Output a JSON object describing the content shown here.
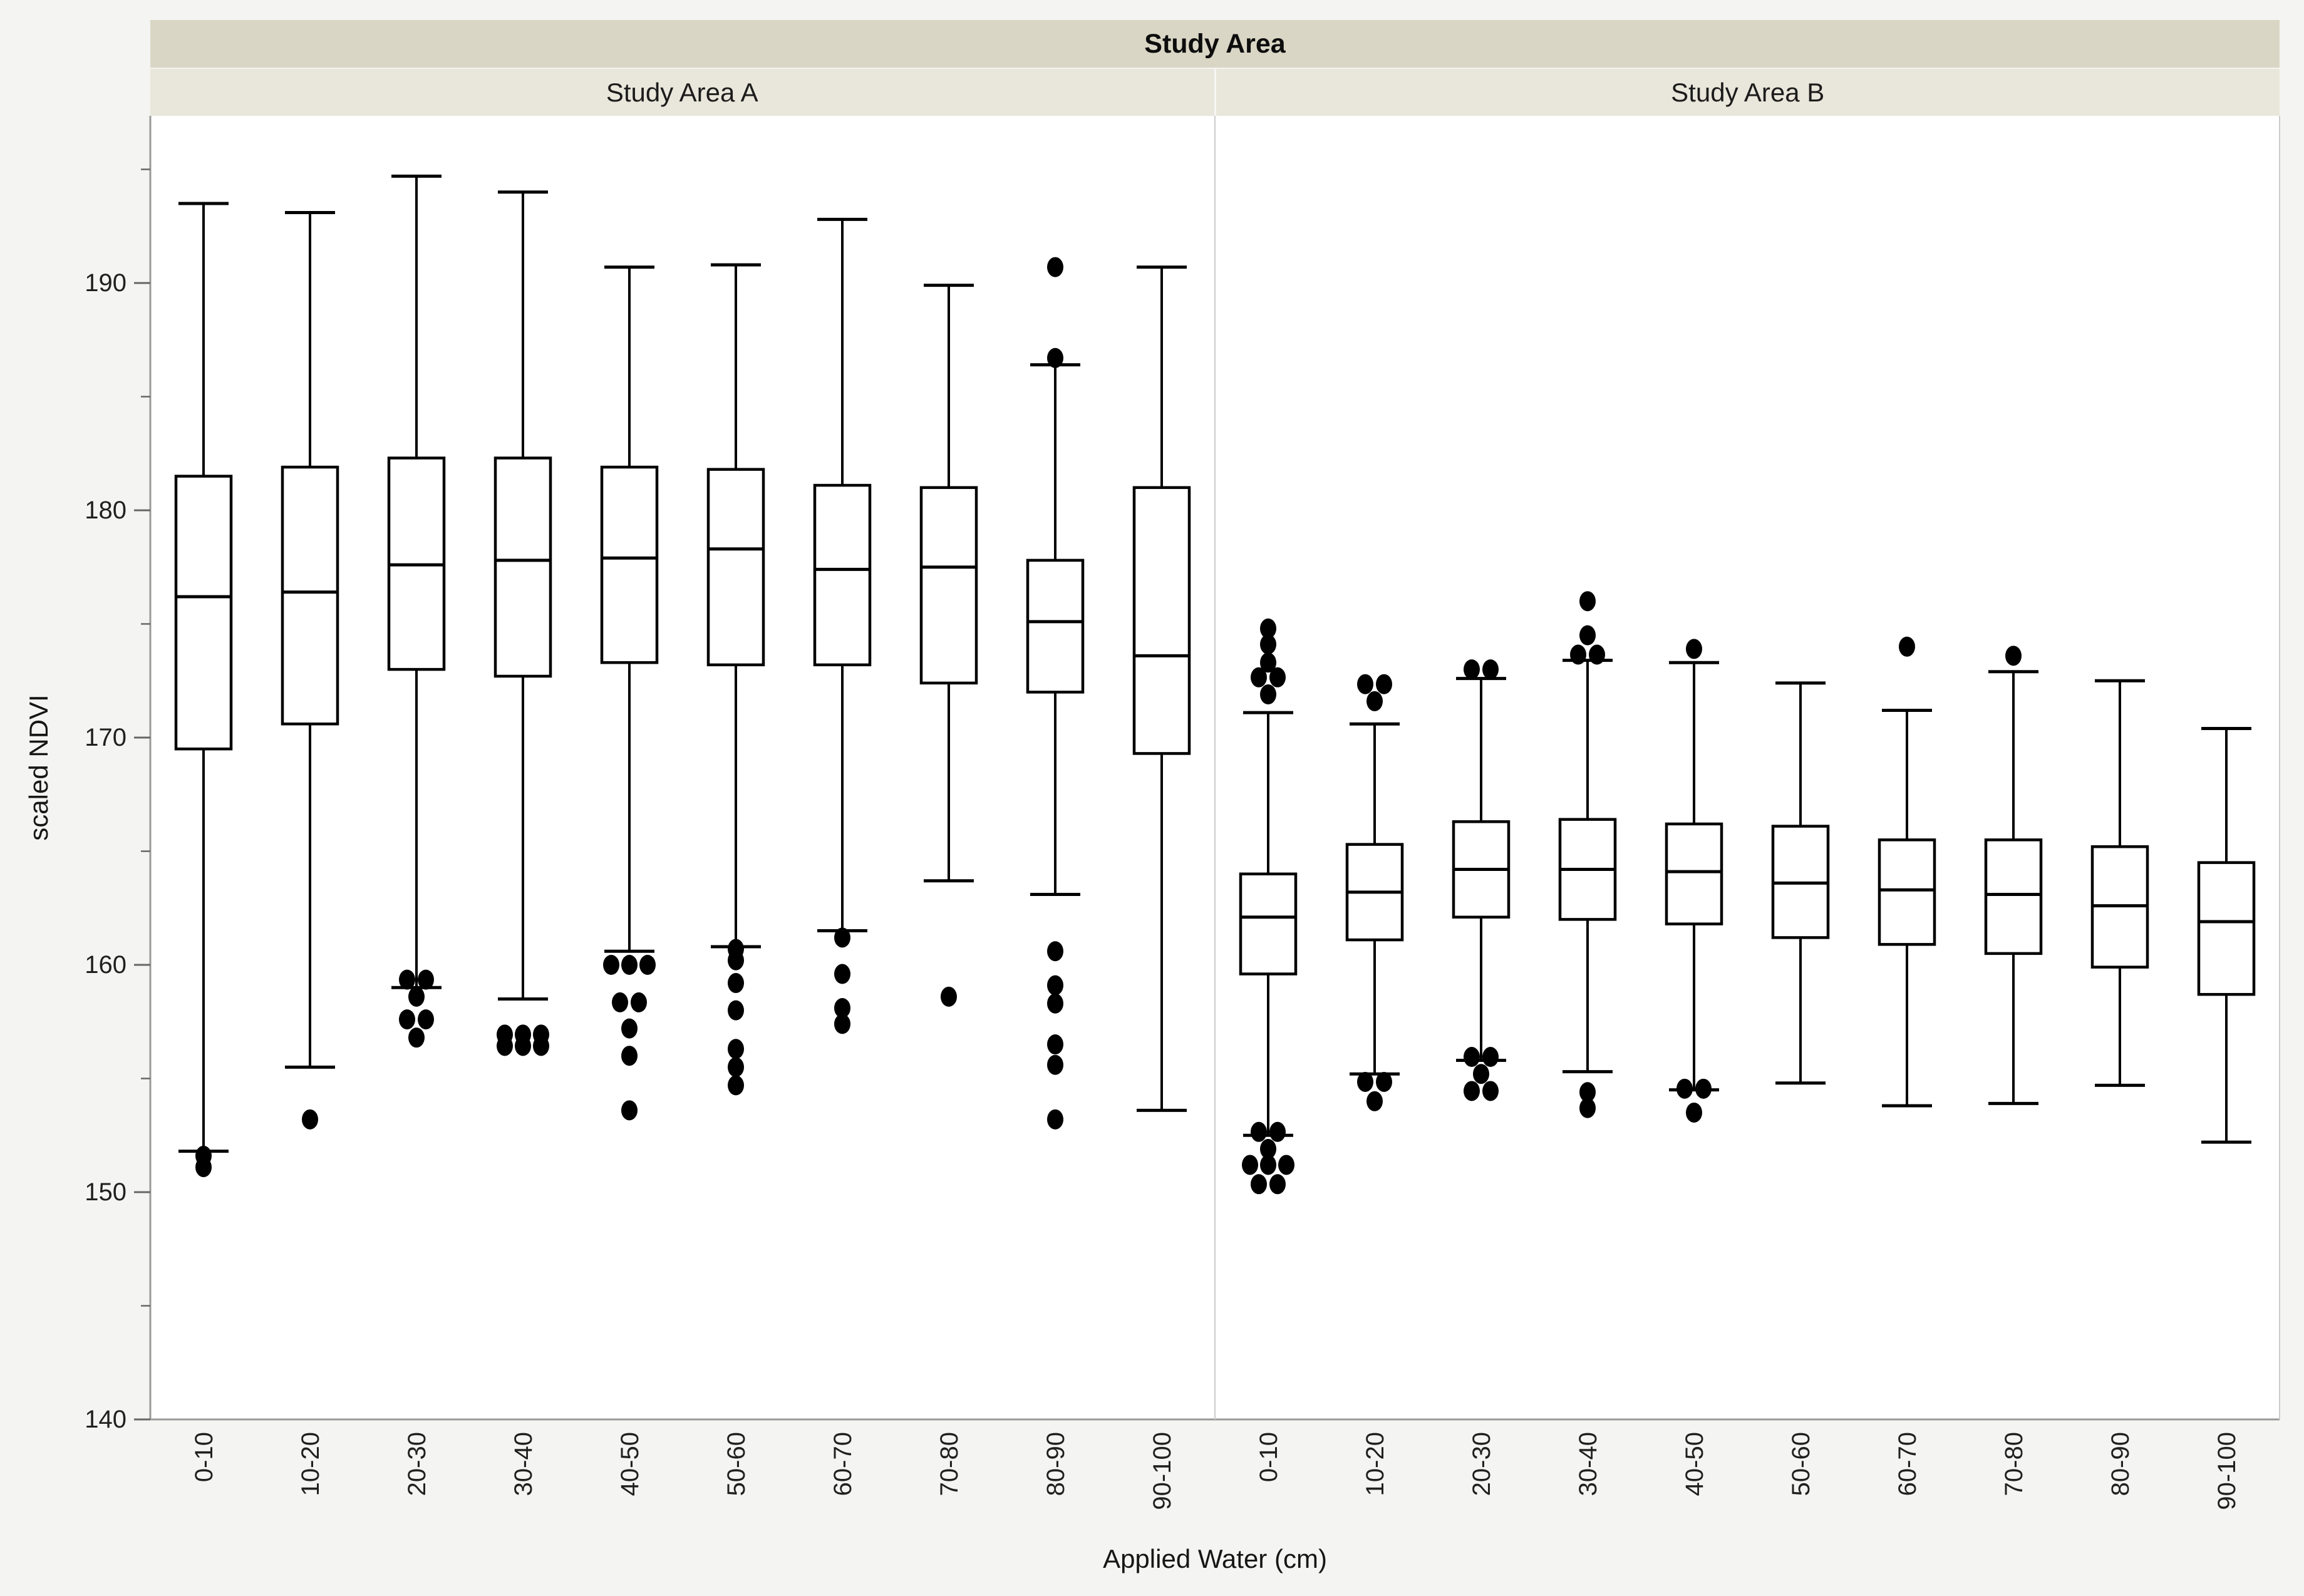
{
  "title": "Study Area",
  "panels_header": [
    "Study Area A",
    "Study Area B"
  ],
  "x_axis": {
    "label": "Applied Water (cm)"
  },
  "y_axis": {
    "label": "scaled NDVI",
    "major_ticks": [
      190,
      180,
      170,
      160,
      150,
      140
    ],
    "minor_ticks": [
      195,
      185,
      175,
      165,
      155,
      145
    ],
    "range": [
      140,
      197.3
    ]
  },
  "colors": {
    "page_bg": "#f4f4f2",
    "header_band": "#d9d6c5",
    "subheader_band": "#e9e7db",
    "plot_bg": "#ffffff",
    "axis_line": "#9a9a9a",
    "panel_divider": "#cccccc",
    "tick_mark": "#666666",
    "tick_label": "#202020",
    "box_stroke": "#000000"
  },
  "chart_data": {
    "type": "boxplot",
    "title": "Study Area",
    "xlabel": "Applied Water (cm)",
    "ylabel": "scaled NDVI",
    "ylim": [
      140,
      197.3
    ],
    "y_major_tick_step": 10,
    "y_minor_tick_step": 5,
    "grid": false,
    "legend": "none",
    "categories": [
      "0-10",
      "10-20",
      "20-30",
      "30-40",
      "40-50",
      "50-60",
      "60-70",
      "70-80",
      "80-90",
      "90-100"
    ],
    "panels": [
      {
        "name": "Study Area A",
        "boxes": [
          {
            "category": "0-10",
            "whisker_high": 193.5,
            "q3": 181.5,
            "median": 176.2,
            "q1": 169.5,
            "whisker_low": 151.8,
            "outliers_above": [],
            "outliers_below": [
              151.6,
              151.1
            ]
          },
          {
            "category": "10-20",
            "whisker_high": 193.1,
            "q3": 181.9,
            "median": 176.4,
            "q1": 170.6,
            "whisker_low": 155.5,
            "outliers_above": [],
            "outliers_below": [
              153.2
            ]
          },
          {
            "category": "20-30",
            "whisker_high": 194.7,
            "q3": 182.3,
            "median": 177.6,
            "q1": 173.0,
            "whisker_low": 159.0,
            "outliers_above": [],
            "outliers_below": [
              159.4,
              159.3,
              158.6,
              157.7,
              157.5,
              156.8
            ]
          },
          {
            "category": "30-40",
            "whisker_high": 194.0,
            "q3": 182.3,
            "median": 177.8,
            "q1": 172.7,
            "whisker_low": 158.5,
            "outliers_above": [],
            "outliers_below": [
              157.0,
              156.9,
              156.9,
              156.5,
              156.4,
              156.4
            ]
          },
          {
            "category": "40-50",
            "whisker_high": 190.7,
            "q3": 181.9,
            "median": 177.9,
            "q1": 173.3,
            "whisker_low": 160.6,
            "outliers_above": [],
            "outliers_below": [
              160.1,
              160.0,
              159.9,
              158.4,
              158.3,
              157.2,
              156.0,
              153.6
            ]
          },
          {
            "category": "50-60",
            "whisker_high": 190.8,
            "q3": 181.8,
            "median": 178.3,
            "q1": 173.2,
            "whisker_low": 160.8,
            "outliers_above": [],
            "outliers_below": [
              160.7,
              160.2,
              159.2,
              158.0,
              156.3,
              155.5,
              154.7
            ]
          },
          {
            "category": "60-70",
            "whisker_high": 192.8,
            "q3": 181.1,
            "median": 177.4,
            "q1": 173.2,
            "whisker_low": 161.5,
            "outliers_above": [],
            "outliers_below": [
              161.2,
              159.6,
              158.1,
              157.4
            ]
          },
          {
            "category": "70-80",
            "whisker_high": 189.9,
            "q3": 181.0,
            "median": 177.5,
            "q1": 172.4,
            "whisker_low": 163.7,
            "outliers_above": [],
            "outliers_below": [
              158.6
            ]
          },
          {
            "category": "80-90",
            "whisker_high": 186.4,
            "q3": 177.8,
            "median": 175.1,
            "q1": 172.0,
            "whisker_low": 163.1,
            "outliers_above": [
              190.7,
              186.7
            ],
            "outliers_below": [
              160.6,
              159.1,
              158.3,
              156.5,
              155.6,
              153.2
            ]
          },
          {
            "category": "90-100",
            "whisker_high": 190.7,
            "q3": 181.0,
            "median": 173.6,
            "q1": 169.3,
            "whisker_low": 153.6,
            "outliers_above": [],
            "outliers_below": []
          }
        ]
      },
      {
        "name": "Study Area B",
        "boxes": [
          {
            "category": "0-10",
            "whisker_high": 171.1,
            "q3": 164.0,
            "median": 162.1,
            "q1": 159.6,
            "whisker_low": 152.5,
            "outliers_above": [
              174.8,
              174.1,
              173.3,
              172.7,
              172.6,
              171.9
            ],
            "outliers_below": [
              152.7,
              152.6,
              151.9,
              151.3,
              151.2,
              151.1,
              150.4,
              150.3
            ]
          },
          {
            "category": "10-20",
            "whisker_high": 170.6,
            "q3": 165.3,
            "median": 163.2,
            "q1": 161.1,
            "whisker_low": 155.2,
            "outliers_above": [
              172.4,
              172.3,
              171.6
            ],
            "outliers_below": [
              154.9,
              154.8,
              154.0
            ]
          },
          {
            "category": "20-30",
            "whisker_high": 172.6,
            "q3": 166.3,
            "median": 164.2,
            "q1": 162.1,
            "whisker_low": 155.8,
            "outliers_above": [
              173.1,
              172.9
            ],
            "outliers_below": [
              156.0,
              155.9,
              155.2,
              154.5,
              154.4
            ]
          },
          {
            "category": "30-40",
            "whisker_high": 173.4,
            "q3": 166.4,
            "median": 164.2,
            "q1": 162.0,
            "whisker_low": 155.3,
            "outliers_above": [
              176.0,
              174.5,
              173.7,
              173.6
            ],
            "outliers_below": [
              154.4,
              153.7
            ]
          },
          {
            "category": "40-50",
            "whisker_high": 173.3,
            "q3": 166.2,
            "median": 164.1,
            "q1": 161.8,
            "whisker_low": 154.5,
            "outliers_above": [
              173.9
            ],
            "outliers_below": [
              154.6,
              154.5,
              153.5
            ]
          },
          {
            "category": "50-60",
            "whisker_high": 172.4,
            "q3": 166.1,
            "median": 163.6,
            "q1": 161.2,
            "whisker_low": 154.8,
            "outliers_above": [],
            "outliers_below": []
          },
          {
            "category": "60-70",
            "whisker_high": 171.2,
            "q3": 165.5,
            "median": 163.3,
            "q1": 160.9,
            "whisker_low": 153.8,
            "outliers_above": [
              174.0
            ],
            "outliers_below": []
          },
          {
            "category": "70-80",
            "whisker_high": 172.9,
            "q3": 165.5,
            "median": 163.1,
            "q1": 160.5,
            "whisker_low": 153.9,
            "outliers_above": [
              173.6
            ],
            "outliers_below": []
          },
          {
            "category": "80-90",
            "whisker_high": 172.5,
            "q3": 165.2,
            "median": 162.6,
            "q1": 159.9,
            "whisker_low": 154.7,
            "outliers_above": [],
            "outliers_below": []
          },
          {
            "category": "90-100",
            "whisker_high": 170.4,
            "q3": 164.5,
            "median": 161.9,
            "q1": 158.7,
            "whisker_low": 152.2,
            "outliers_above": [],
            "outliers_below": []
          }
        ]
      }
    ]
  }
}
